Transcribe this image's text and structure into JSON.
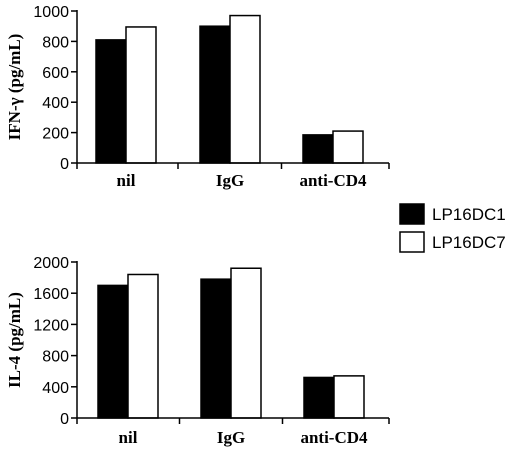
{
  "legend": {
    "series": [
      {
        "name": "LP16DC1",
        "color": "#000000"
      },
      {
        "name": "LP16DC7",
        "color": "#ffffff"
      }
    ]
  },
  "chart_data": [
    {
      "type": "bar",
      "ylabel": "IFN-γ (pg/mL)",
      "categories": [
        "nil",
        "IgG",
        "anti-CD4"
      ],
      "ylim": [
        0,
        1000
      ],
      "yticks": [
        0,
        200,
        400,
        600,
        800,
        1000
      ],
      "series": [
        {
          "name": "LP16DC1",
          "values": [
            810,
            900,
            185
          ]
        },
        {
          "name": "LP16DC7",
          "values": [
            895,
            970,
            210
          ]
        }
      ]
    },
    {
      "type": "bar",
      "ylabel": "IL-4 (pg/mL)",
      "categories": [
        "nil",
        "IgG",
        "anti-CD4"
      ],
      "ylim": [
        0,
        2000
      ],
      "yticks": [
        0,
        400,
        800,
        1200,
        1600,
        2000
      ],
      "series": [
        {
          "name": "LP16DC1",
          "values": [
            1700,
            1780,
            520
          ]
        },
        {
          "name": "LP16DC7",
          "values": [
            1840,
            1920,
            540
          ]
        }
      ]
    }
  ]
}
